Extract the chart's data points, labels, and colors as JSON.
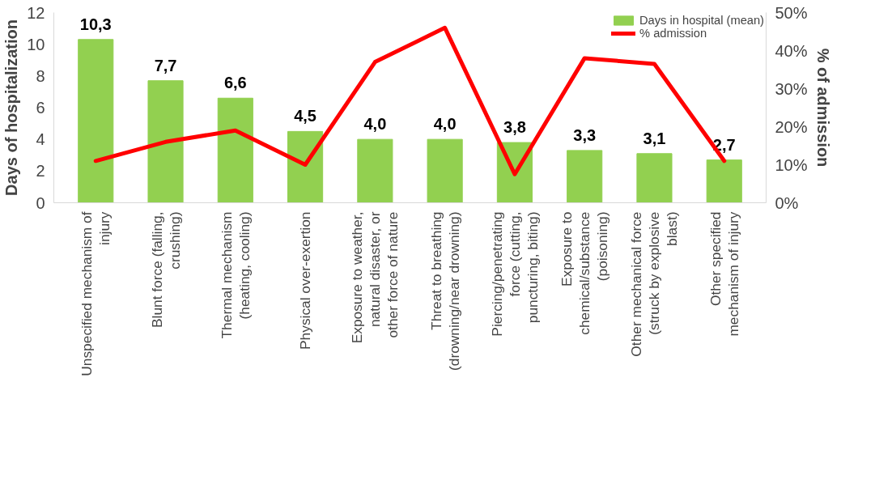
{
  "chart_data": {
    "type": "bar",
    "categories": [
      "Unspecified mechanism of injury",
      "Blunt force (falling, crushing)",
      "Thermal mechanism (heating, cooling)",
      "Physical over-exertion",
      "Exposure to weather, natural disaster, or other force of nature",
      "Threat to breathing (drowning/near drowning)",
      "Piercing/penetrating force (cutting, puncturing, biting)",
      "Exposure to chemical/substance (poisoning)",
      "Other mechanical force (struck by explosive blast)",
      "Other specified mechanism of injury"
    ],
    "series": [
      {
        "name": "Days in hospital (mean)",
        "type": "bar",
        "color": "#92d050",
        "values": [
          10.3,
          7.7,
          6.6,
          4.5,
          4.0,
          4.0,
          3.8,
          3.3,
          3.1,
          2.7
        ],
        "value_labels": [
          "10,3",
          "7,7",
          "6,6",
          "4,5",
          "4,0",
          "4,0",
          "3,8",
          "3,3",
          "3,1",
          "2,7"
        ]
      },
      {
        "name": "% admission",
        "type": "line",
        "axis": "y2",
        "color": "#ff0000",
        "values": [
          11,
          16,
          19,
          10,
          37,
          46,
          7.5,
          38,
          36.5,
          11
        ]
      }
    ],
    "ylabel": "Days of hospitalization",
    "y2label": "% of admission",
    "ylim": [
      0,
      12
    ],
    "yticks": [
      0,
      2,
      4,
      6,
      8,
      10,
      12
    ],
    "y2lim": [
      0,
      50
    ],
    "y2ticks": [
      {
        "value": 0,
        "label": "0%"
      },
      {
        "value": 10,
        "label": "10%"
      },
      {
        "value": 20,
        "label": "20%"
      },
      {
        "value": 30,
        "label": "30%"
      },
      {
        "value": 40,
        "label": "40%"
      },
      {
        "value": 50,
        "label": "50%"
      }
    ],
    "grid": false,
    "legend": "top right",
    "marker": "none",
    "line_style": "solid"
  }
}
